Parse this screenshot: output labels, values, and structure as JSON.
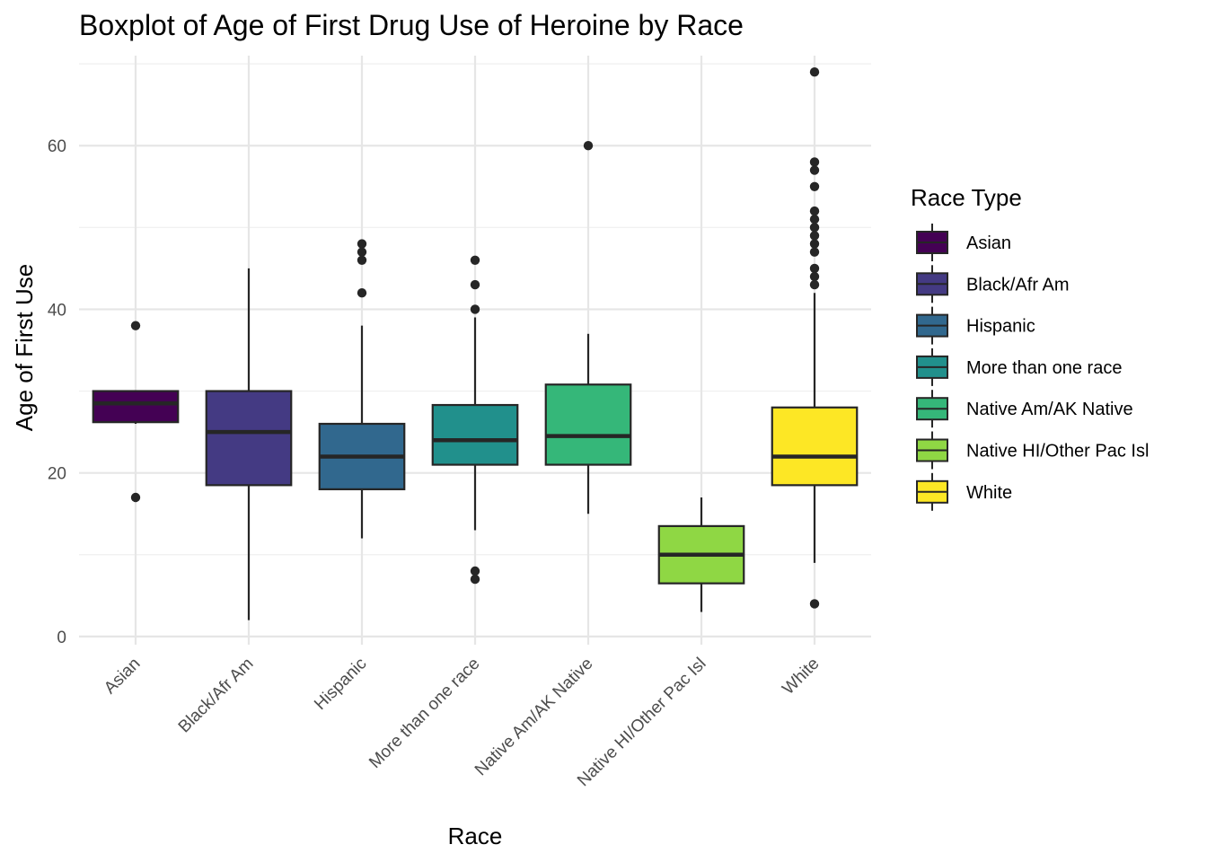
{
  "chart_data": {
    "type": "boxplot",
    "title": "Boxplot of Age of First Drug Use of Heroine by Race",
    "xlabel": "Race",
    "ylabel": "Age of First Use",
    "ylim": [
      -1,
      71
    ],
    "yticks": [
      0,
      20,
      40,
      60
    ],
    "grid": true,
    "legend": {
      "title": "Race Type",
      "position": "right"
    },
    "categories": [
      "Asian",
      "Black/Afr Am",
      "Hispanic",
      "More than one race",
      "Native Am/AK Native",
      "Native HI/Other Pac Isl",
      "White"
    ],
    "colors": [
      "#440154",
      "#443A83",
      "#31688E",
      "#21908C",
      "#35B779",
      "#8FD744",
      "#FDE725"
    ],
    "boxes": [
      {
        "name": "Asian",
        "min": 26,
        "q1": 26.2,
        "median": 28.5,
        "q3": 30,
        "max": 30,
        "outliers": [
          38,
          17
        ]
      },
      {
        "name": "Black/Afr Am",
        "min": 2,
        "q1": 18.5,
        "median": 25,
        "q3": 30,
        "max": 45,
        "outliers": []
      },
      {
        "name": "Hispanic",
        "min": 12,
        "q1": 18,
        "median": 22,
        "q3": 26,
        "max": 38,
        "outliers": [
          48,
          47,
          46,
          42
        ]
      },
      {
        "name": "More than one race",
        "min": 13,
        "q1": 21,
        "median": 24,
        "q3": 28.3,
        "max": 39,
        "outliers": [
          46,
          43,
          40,
          8,
          7
        ]
      },
      {
        "name": "Native Am/AK Native",
        "min": 15,
        "q1": 21,
        "median": 24.5,
        "q3": 30.8,
        "max": 37,
        "outliers": [
          60
        ]
      },
      {
        "name": "Native HI/Other Pac Isl",
        "min": 3,
        "q1": 6.5,
        "median": 10,
        "q3": 13.5,
        "max": 17,
        "outliers": []
      },
      {
        "name": "White",
        "min": 9,
        "q1": 18.5,
        "median": 22,
        "q3": 28,
        "max": 42,
        "outliers": [
          69,
          58,
          57,
          55,
          52,
          51,
          50,
          49,
          48,
          47,
          45,
          44,
          43,
          4
        ]
      }
    ]
  }
}
